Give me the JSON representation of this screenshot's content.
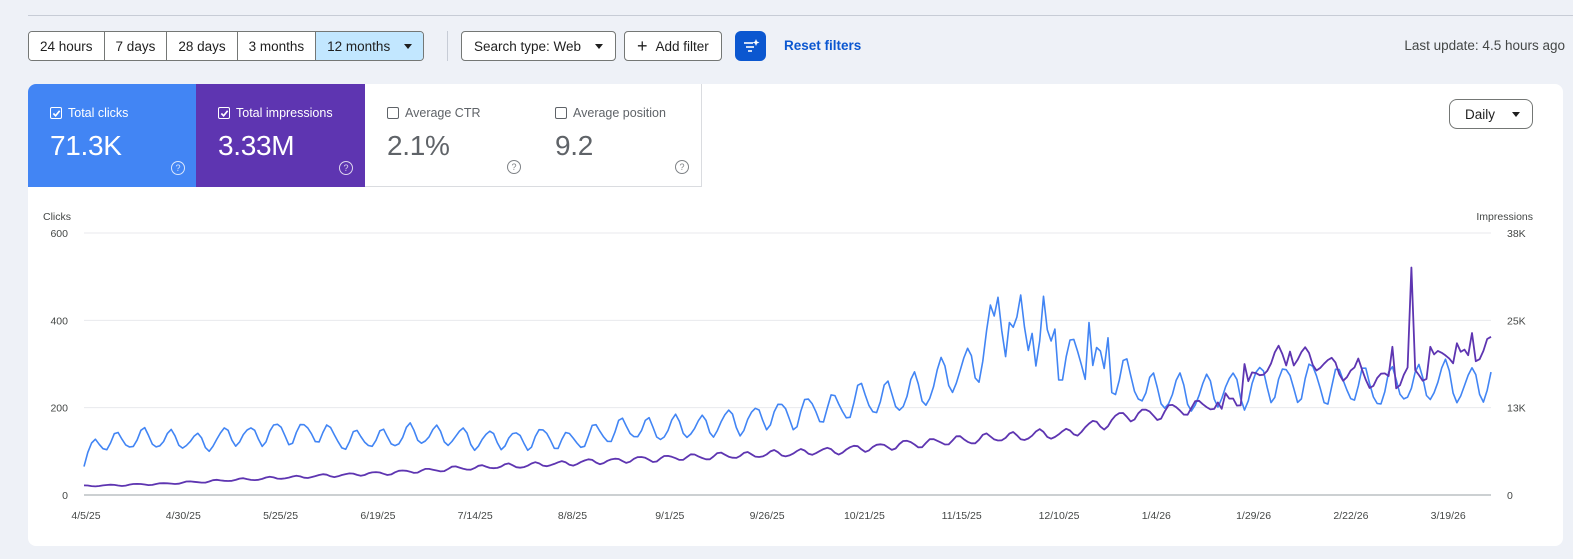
{
  "toolbar": {
    "date_ranges": [
      "24 hours",
      "7 days",
      "28 days",
      "3 months",
      "12 months"
    ],
    "active_range": "12 months",
    "search_type": "Search type: Web",
    "add_filter": "Add filter",
    "reset_filters": "Reset filters",
    "last_update": "Last update: 4.5 hours ago"
  },
  "metrics": {
    "clicks": {
      "label": "Total clicks",
      "value": "71.3K",
      "checked": true,
      "color": "#4285f4"
    },
    "impressions": {
      "label": "Total impressions",
      "value": "3.33M",
      "checked": true,
      "color": "#5e35b1"
    },
    "ctr": {
      "label": "Average CTR",
      "value": "2.1%",
      "checked": false
    },
    "position": {
      "label": "Average position",
      "value": "9.2",
      "checked": false
    }
  },
  "granularity": "Daily",
  "chart_data": {
    "type": "line",
    "left_axis_title": "Clicks",
    "right_axis_title": "Impressions",
    "left_ticks": [
      "600",
      "400",
      "200",
      "0"
    ],
    "right_ticks": [
      "38K",
      "25K",
      "13K",
      "0"
    ],
    "ylim_left": [
      0,
      600
    ],
    "ylim_right": [
      0,
      38000
    ],
    "x_ticks": [
      "4/5/25",
      "4/30/25",
      "5/25/25",
      "6/19/25",
      "7/14/25",
      "8/8/25",
      "9/1/25",
      "9/26/25",
      "10/21/25",
      "11/15/25",
      "12/10/25",
      "1/4/26",
      "1/29/26",
      "2/22/26",
      "3/19/26"
    ],
    "x_range": [
      "2025-04-05",
      "2026-04-11"
    ],
    "grid": true,
    "series": [
      {
        "name": "Total clicks",
        "axis": "left",
        "color": "#4285f4",
        "keypoints": [
          [
            0,
            65
          ],
          [
            3,
            120
          ],
          [
            10,
            125
          ],
          [
            20,
            130
          ],
          [
            30,
            120
          ],
          [
            40,
            135
          ],
          [
            50,
            140
          ],
          [
            60,
            145
          ],
          [
            70,
            125
          ],
          [
            80,
            130
          ],
          [
            90,
            140
          ],
          [
            100,
            130
          ],
          [
            110,
            125
          ],
          [
            120,
            130
          ],
          [
            130,
            125
          ],
          [
            140,
            150
          ],
          [
            150,
            150
          ],
          [
            160,
            155
          ],
          [
            170,
            165
          ],
          [
            180,
            180
          ],
          [
            190,
            190
          ],
          [
            200,
            205
          ],
          [
            210,
            225
          ],
          [
            215,
            220
          ],
          [
            225,
            260
          ],
          [
            235,
            300
          ],
          [
            240,
            410
          ],
          [
            245,
            380
          ],
          [
            250,
            340
          ],
          [
            255,
            330
          ],
          [
            265,
            300
          ],
          [
            275,
            260
          ],
          [
            285,
            230
          ],
          [
            295,
            235
          ],
          [
            305,
            245
          ],
          [
            315,
            260
          ],
          [
            325,
            255
          ],
          [
            335,
            250
          ],
          [
            345,
            245
          ],
          [
            355,
            260
          ],
          [
            365,
            255
          ],
          [
            368,
            250
          ],
          [
            371,
            270
          ]
        ],
        "spikes": [
          [
            240,
            410
          ],
          [
            244,
            395
          ],
          [
            247,
            458
          ],
          [
            250,
            370
          ],
          [
            253,
            455
          ],
          [
            256,
            380
          ],
          [
            260,
            355
          ],
          [
            265,
            395
          ],
          [
            270,
            360
          ]
        ]
      },
      {
        "name": "Total impressions",
        "axis": "right",
        "color": "#5e35b1",
        "keypoints": [
          [
            0,
            1300
          ],
          [
            20,
            1600
          ],
          [
            40,
            2200
          ],
          [
            60,
            2700
          ],
          [
            80,
            3200
          ],
          [
            100,
            3900
          ],
          [
            120,
            4400
          ],
          [
            140,
            5000
          ],
          [
            160,
            5500
          ],
          [
            180,
            5900
          ],
          [
            200,
            6500
          ],
          [
            220,
            7500
          ],
          [
            240,
            8300
          ],
          [
            260,
            9000
          ],
          [
            275,
            11500
          ],
          [
            285,
            12000
          ],
          [
            300,
            13500
          ],
          [
            305,
            14000
          ],
          [
            310,
            18000
          ],
          [
            315,
            20000
          ],
          [
            325,
            19500
          ],
          [
            335,
            17500
          ],
          [
            345,
            16500
          ],
          [
            355,
            18500
          ],
          [
            360,
            21000
          ],
          [
            363,
            19500
          ],
          [
            368,
            21000
          ],
          [
            371,
            21000
          ]
        ],
        "spikes": [
          [
            300,
            12500
          ],
          [
            303,
            14000
          ],
          [
            306,
            19000
          ],
          [
            318,
            20800
          ],
          [
            336,
            19800
          ],
          [
            345,
            21500
          ],
          [
            350,
            33000
          ],
          [
            355,
            21500
          ],
          [
            362,
            22000
          ],
          [
            366,
            23500
          ]
        ]
      }
    ]
  }
}
